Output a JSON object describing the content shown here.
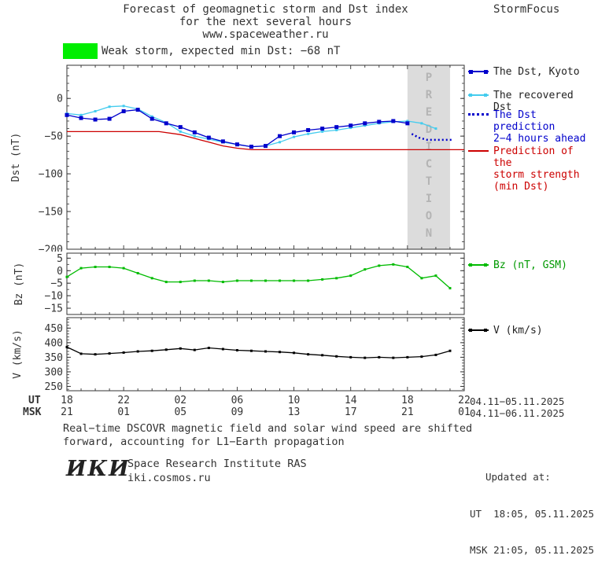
{
  "header": {
    "title_line1": "Forecast of geomagnetic storm and Dst index",
    "title_line2": "for the next several hours",
    "title_line3": "www.spaceweather.ru",
    "brand": "StormFocus"
  },
  "status": {
    "label": "Weak storm, expected min Dst: −68 nT",
    "color": "#00ee00"
  },
  "prediction_band_label": "PREDICTION",
  "axes": {
    "ut_label": "UT",
    "msk_label": "MSK",
    "ut_ticks": [
      "18",
      "22",
      "02",
      "06",
      "10",
      "14",
      "18",
      "22"
    ],
    "msk_ticks": [
      "21",
      "01",
      "05",
      "09",
      "13",
      "17",
      "21",
      "01"
    ],
    "ut_range": "04.11−05.11.2025",
    "msk_range": "04.11−06.11.2025"
  },
  "legend": {
    "dst": [
      {
        "id": "kyoto",
        "lines": [
          "The Dst, Kyoto"
        ],
        "marker": "line-squares",
        "color": "#0000cc",
        "text_color": "#222222"
      },
      {
        "id": "recovered",
        "lines": [
          "The recovered Dst"
        ],
        "marker": "line-smallsquares",
        "color": "#44ccee",
        "text_color": "#222222"
      },
      {
        "id": "prediction",
        "lines": [
          "The Dst prediction",
          "2−4 hours ahead"
        ],
        "marker": "dotted-line",
        "color": "#0000cc",
        "text_color": "#0000cc"
      },
      {
        "id": "strength",
        "lines": [
          "Prediction of the",
          "storm strength",
          "(min Dst)"
        ],
        "marker": "line",
        "color": "#cc0000",
        "text_color": "#cc0000"
      }
    ],
    "bz": {
      "id": "bz",
      "lines": [
        "Bz (nT, GSM)"
      ],
      "marker": "line-smallsquares",
      "color": "#00bb00",
      "text_color": "#009900"
    },
    "v": {
      "id": "v",
      "lines": [
        "V (km/s)"
      ],
      "marker": "line-smallsquares",
      "color": "#000000",
      "text_color": "#222222"
    }
  },
  "footer": {
    "note_line1": "Real−time DSCOVR magnetic field and solar wind speed are shifted",
    "note_line2": "forward, accounting for L1−Earth propagation",
    "logo": "ИКИ",
    "institute": "Space Research Institute RAS",
    "site": "iki.cosmos.ru",
    "updated_label": "Updated at:",
    "updated_ut": "UT  18:05, 05.11.2025",
    "updated_msk": "MSK 21:05, 05.11.2025"
  },
  "chart_data": [
    {
      "type": "line",
      "title": "Forecast of geomagnetic storm and Dst index for the next several hours",
      "ylabel": "Dst (nT)",
      "xlabel": "UT hours 04.11−05.11.2025",
      "xlim": [
        18,
        46
      ],
      "ylim": [
        -200,
        44
      ],
      "yticks": [
        0,
        -50,
        -100,
        -150,
        -200
      ],
      "xtick_hours": [
        18,
        22,
        2,
        6,
        10,
        14,
        18,
        22
      ],
      "grid": false,
      "legend_position": "right",
      "prediction_band": [
        42,
        45
      ],
      "expected_min_dst_nT": -68,
      "series": [
        {
          "name": "The Dst, Kyoto",
          "color": "#0000cc",
          "marker": "square",
          "x": [
            18,
            19,
            20,
            21,
            22,
            23,
            24,
            25,
            26,
            27,
            28,
            29,
            30,
            31,
            32,
            33,
            34,
            35,
            36,
            37,
            38,
            39,
            40,
            41,
            42
          ],
          "y": [
            -22,
            -26,
            -28,
            -27,
            -17,
            -15,
            -27,
            -33,
            -38,
            -45,
            -52,
            -57,
            -61,
            -64,
            -63,
            -50,
            -45,
            -42,
            -40,
            -38,
            -36,
            -33,
            -31,
            -30,
            -33
          ]
        },
        {
          "name": "The recovered Dst",
          "color": "#44ccee",
          "marker": "smallsquare",
          "x": [
            18,
            19,
            20,
            21,
            22,
            23,
            24,
            25,
            26,
            27,
            28,
            29,
            30,
            31,
            32,
            33,
            34,
            35,
            36,
            37,
            38,
            39,
            40,
            41,
            42,
            43,
            44
          ],
          "y": [
            -20,
            -22,
            -17,
            -11,
            -10,
            -14,
            -24,
            -32,
            -44,
            -50,
            -54,
            -58,
            -61,
            -64,
            -63,
            -58,
            -51,
            -47,
            -44,
            -42,
            -39,
            -36,
            -33,
            -31,
            -30,
            -33,
            -40
          ]
        },
        {
          "name": "The Dst prediction 2−4 hours ahead",
          "color": "#0000cc",
          "style": "dotted",
          "x": [
            42.3,
            42.8,
            43.4,
            44.0,
            44.6,
            45.2
          ],
          "y": [
            -47,
            -52,
            -55,
            -55,
            -55,
            -55
          ]
        },
        {
          "name": "Prediction of the storm strength (min Dst)",
          "color": "#cc0000",
          "x": [
            18,
            24.5,
            26,
            27,
            28,
            29,
            30,
            31,
            46
          ],
          "y": [
            -44,
            -44,
            -48,
            -53,
            -58,
            -63,
            -66,
            -68,
            -68
          ]
        }
      ]
    },
    {
      "type": "line",
      "ylabel": "Bz (nT)",
      "xlim": [
        18,
        46
      ],
      "ylim": [
        -17.5,
        7
      ],
      "yticks": [
        5,
        0,
        -5,
        -10,
        -15
      ],
      "grid": false,
      "series": [
        {
          "name": "Bz (nT, GSM)",
          "color": "#00bb00",
          "marker": "smallsquare",
          "x": [
            18,
            19,
            20,
            21,
            22,
            23,
            24,
            25,
            26,
            27,
            28,
            29,
            30,
            31,
            32,
            33,
            34,
            35,
            36,
            37,
            38,
            39,
            40,
            41,
            42,
            43,
            44,
            45
          ],
          "y": [
            -2.5,
            1.0,
            1.5,
            1.5,
            1.0,
            -1.0,
            -3.0,
            -4.5,
            -4.5,
            -4.0,
            -4.0,
            -4.5,
            -4.0,
            -4.0,
            -4.0,
            -4.0,
            -4.0,
            -4.0,
            -3.5,
            -3.0,
            -2.0,
            0.5,
            2.0,
            2.5,
            1.5,
            -3.0,
            -2.0,
            -7.0
          ]
        }
      ]
    },
    {
      "type": "line",
      "ylabel": "V (km/s)",
      "xlim": [
        18,
        46
      ],
      "ylim": [
        235,
        486
      ],
      "yticks": [
        450,
        400,
        350,
        300,
        250
      ],
      "grid": false,
      "series": [
        {
          "name": "V (km/s)",
          "color": "#000000",
          "marker": "smallsquare",
          "x": [
            18,
            19,
            20,
            21,
            22,
            23,
            24,
            25,
            26,
            27,
            28,
            29,
            30,
            31,
            32,
            33,
            34,
            35,
            36,
            37,
            38,
            39,
            40,
            41,
            42,
            43,
            44,
            45
          ],
          "y": [
            385,
            362,
            360,
            363,
            366,
            370,
            372,
            376,
            380,
            375,
            382,
            378,
            374,
            372,
            370,
            368,
            365,
            360,
            357,
            353,
            350,
            348,
            350,
            348,
            350,
            352,
            358,
            372
          ]
        }
      ]
    }
  ]
}
